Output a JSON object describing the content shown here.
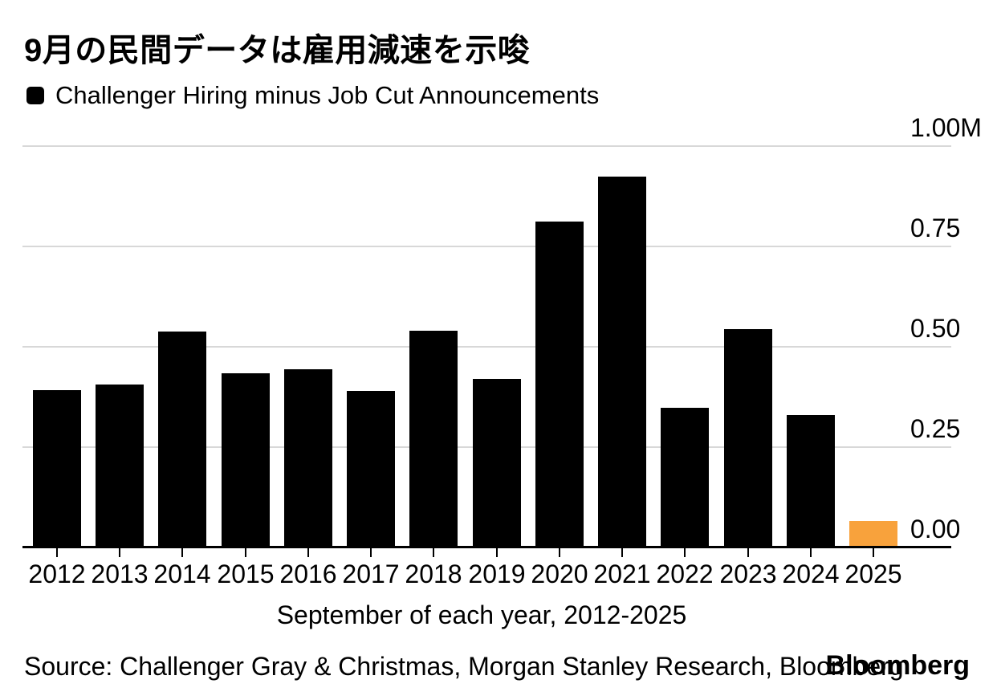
{
  "title": "9月の民間データは雇用減速を示唆",
  "legend": {
    "label": "Challenger Hiring minus Job Cut Announcements",
    "swatch_color": "#000000"
  },
  "chart_data": {
    "type": "bar",
    "title": "9月の民間データは雇用減速を示唆",
    "series_name": "Challenger Hiring minus Job Cut Announcements",
    "categories": [
      "2012",
      "2013",
      "2014",
      "2015",
      "2016",
      "2017",
      "2018",
      "2019",
      "2020",
      "2021",
      "2022",
      "2023",
      "2024",
      "2025"
    ],
    "values": [
      0.392,
      0.405,
      0.538,
      0.434,
      0.444,
      0.39,
      0.54,
      0.42,
      0.812,
      0.924,
      0.348,
      0.543,
      0.33,
      0.065
    ],
    "unit": "millions",
    "ylim": [
      0,
      1.0
    ],
    "yticks": [
      {
        "value": 1.0,
        "label": "1.00M"
      },
      {
        "value": 0.75,
        "label": "0.75"
      },
      {
        "value": 0.5,
        "label": "0.50"
      },
      {
        "value": 0.25,
        "label": "0.25"
      },
      {
        "value": 0.0,
        "label": "0.00"
      }
    ],
    "xlabel": "September of each year, 2012-2025",
    "grid": "horizontal",
    "legend_position": "top-left",
    "bar_color": "#000000",
    "gridline_color": "#d8d8d8",
    "highlight": {
      "category": "2025",
      "color": "#F8A23C"
    }
  },
  "footer": {
    "source": "Source: Challenger Gray & Christmas, Morgan Stanley Research, Bloomberg",
    "brand": "Bloomberg"
  }
}
